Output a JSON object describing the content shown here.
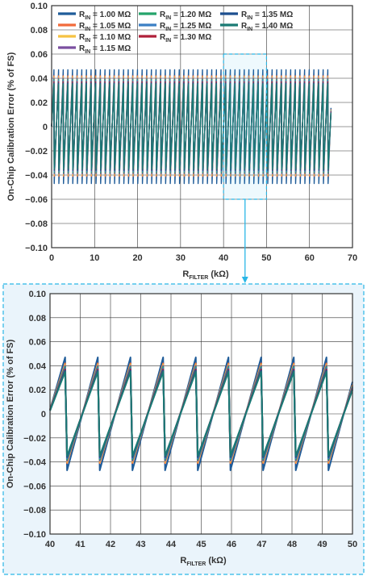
{
  "chart_data": [
    {
      "type": "line",
      "xlabel": {
        "main": "R",
        "sub": "FILTER",
        "unit": " (kΩ)"
      },
      "ylabel": "On-Chip Calibration Error (% of FS)",
      "xlim": [
        0,
        70
      ],
      "ylim": [
        -0.1,
        0.1
      ],
      "x_ticks": [
        "0",
        "10",
        "20",
        "30",
        "40",
        "50",
        "60",
        "70"
      ],
      "y_ticks": [
        "0.10",
        "0.08",
        "0.06",
        "0.04",
        "0.02",
        "0",
        "−0.02",
        "−0.04",
        "−0.06",
        "−0.08",
        "−0.10"
      ],
      "grid": true,
      "legend_position": "top-left",
      "waveform": {
        "shape": "sawtooth",
        "period_kohm": 1.08,
        "x_start": 0,
        "x_end": 65,
        "peak": 0.045,
        "trough": -0.045
      },
      "series": [
        {
          "name_main": "R",
          "name_sub": "IN",
          "name_rest": " = 1.00 MΩ",
          "color": "#1f5c99",
          "peak": 0.047,
          "trough": -0.047
        },
        {
          "name_main": "R",
          "name_sub": "IN",
          "name_rest": " = 1.05 MΩ",
          "color": "#f26b3a",
          "peak": 0.042,
          "trough": -0.041
        },
        {
          "name_main": "R",
          "name_sub": "IN",
          "name_rest": " = 1.10 MΩ",
          "color": "#f5c242",
          "peak": 0.041,
          "trough": -0.04
        },
        {
          "name_main": "R",
          "name_sub": "IN",
          "name_rest": " = 1.15 MΩ",
          "color": "#7b4fa0",
          "peak": 0.04,
          "trough": -0.039
        },
        {
          "name_main": "R",
          "name_sub": "IN",
          "name_rest": " = 1.20 MΩ",
          "color": "#25a46b",
          "peak": 0.039,
          "trough": -0.038
        },
        {
          "name_main": "R",
          "name_sub": "IN",
          "name_rest": " = 1.25 MΩ",
          "color": "#3b7fc4",
          "peak": 0.038,
          "trough": -0.037
        },
        {
          "name_main": "R",
          "name_sub": "IN",
          "name_rest": " = 1.30 MΩ",
          "color": "#b0203a",
          "peak": 0.037,
          "trough": -0.036
        },
        {
          "name_main": "R",
          "name_sub": "IN",
          "name_rest": " = 1.35 MΩ",
          "color": "#1d4f8f",
          "peak": 0.036,
          "trough": -0.036
        },
        {
          "name_main": "R",
          "name_sub": "IN",
          "name_rest": " = 1.40 MΩ",
          "color": "#1a7a74",
          "peak": 0.035,
          "trough": -0.035
        }
      ]
    },
    {
      "type": "line",
      "xlabel": {
        "main": "R",
        "sub": "FILTER",
        "unit": " (kΩ)"
      },
      "ylabel": "On-Chip Calibration Error (% of FS)",
      "xlim": [
        40,
        50
      ],
      "ylim": [
        -0.1,
        0.1
      ],
      "x_ticks": [
        "40",
        "41",
        "42",
        "43",
        "44",
        "45",
        "46",
        "47",
        "48",
        "49",
        "50"
      ],
      "y_ticks": [
        "0.10",
        "0.08",
        "0.06",
        "0.04",
        "0.02",
        "0",
        "−0.02",
        "−0.04",
        "−0.06",
        "−0.08",
        "−0.10"
      ],
      "grid": true,
      "waveform": {
        "shape": "sawtooth",
        "period_kohm": 1.08,
        "first_peak_x": 40.5,
        "x_start": 40,
        "x_end": 50
      },
      "series_ref": "same as overview chart"
    }
  ],
  "zoom_region": {
    "x_range": [
      40,
      50
    ],
    "y_range": [
      -0.06,
      0.06
    ]
  },
  "colors": {
    "axis": "#333333",
    "grid": "#333333",
    "zoom_highlight": "#29b6e6",
    "zoom_background": "#eaf4fb"
  }
}
